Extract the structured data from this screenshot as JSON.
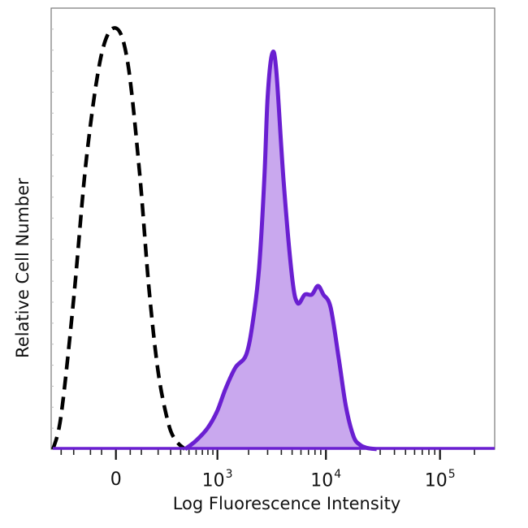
{
  "chart_data": {
    "type": "area",
    "xlabel": "Log Fluorescence Intensity",
    "ylabel": "Relative Cell Number",
    "x_scale": "biexponential",
    "xlim": [
      -400,
      300000
    ],
    "ylim": [
      0,
      100
    ],
    "x_ticks": [
      {
        "value": 0,
        "base": "0",
        "exp": ""
      },
      {
        "value": 1000,
        "base": "10",
        "exp": "3"
      },
      {
        "value": 10000,
        "base": "10",
        "exp": "4"
      },
      {
        "value": 100000,
        "base": "10",
        "exp": "5"
      }
    ],
    "series": [
      {
        "style": "dashed-black-outline",
        "color": "#000000",
        "x": [
          -380,
          -300,
          -200,
          -120,
          -50,
          0,
          40,
          90,
          140,
          200,
          280,
          350,
          450
        ],
        "y": [
          0,
          8,
          35,
          68,
          92,
          98,
          90,
          65,
          38,
          18,
          6,
          2,
          0
        ]
      },
      {
        "style": "purple-filled",
        "color": "#6a1fd1",
        "fill": "#c9a8ee",
        "x": [
          450,
          600,
          800,
          1000,
          1200,
          1500,
          1900,
          2200,
          2500,
          2800,
          3000,
          3300,
          3600,
          4200,
          5000,
          5600,
          6500,
          7500,
          8500,
          9500,
          11000,
          13000,
          15000,
          17500,
          20000,
          23000,
          28000
        ],
        "y": [
          0,
          2,
          5,
          9,
          14,
          19,
          22,
          30,
          42,
          63,
          82,
          92,
          88,
          62,
          40,
          34,
          36,
          36,
          38,
          36,
          33,
          21,
          10,
          3,
          1,
          0.3,
          0
        ]
      }
    ]
  }
}
